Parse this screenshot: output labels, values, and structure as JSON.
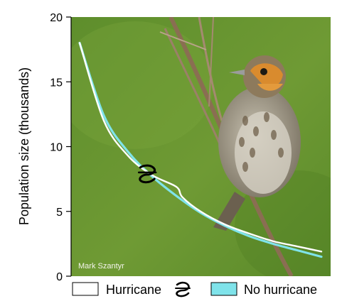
{
  "chart_data": {
    "type": "line",
    "title": "",
    "xlabel": "",
    "ylabel": "Population size (thousands)",
    "ylim": [
      0,
      20
    ],
    "yticks": [
      0,
      5,
      10,
      15,
      20
    ],
    "xlim": [
      0,
      1
    ],
    "grid": false,
    "legend_position": "bottom",
    "photo_credit": "Mark Szantyr",
    "series": [
      {
        "name": "Hurricane",
        "color": "#ffffff",
        "icon": "hurricane-icon",
        "x": [
          0,
          0.1,
          0.2,
          0.3,
          0.4,
          0.425,
          0.5,
          0.6,
          0.7,
          0.8,
          0.9,
          1.0
        ],
        "y": [
          18.0,
          12.0,
          9.3,
          7.8,
          6.9,
          6.1,
          5.0,
          4.0,
          3.3,
          2.7,
          2.3,
          1.9
        ]
      },
      {
        "name": "No hurricane",
        "color": "#7fe3ea",
        "x": [
          0,
          0.1,
          0.2,
          0.3,
          0.4,
          0.5,
          0.6,
          0.7,
          0.8,
          0.9,
          1.0
        ],
        "y": [
          18.0,
          12.4,
          9.6,
          7.7,
          6.2,
          4.9,
          3.9,
          3.1,
          2.5,
          2.0,
          1.5
        ]
      }
    ]
  }
}
